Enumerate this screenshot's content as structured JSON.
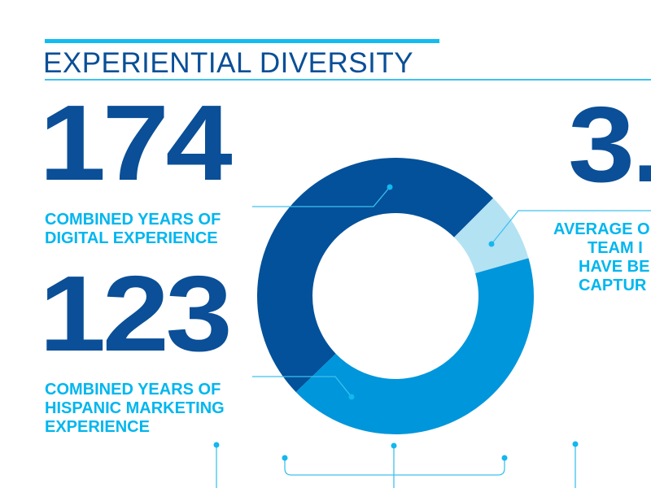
{
  "header": {
    "title": "EXPERIENTIAL DIVERSITY"
  },
  "stats": [
    {
      "value": "174",
      "label_lines": [
        "COMBINED YEARS OF",
        "DIGITAL EXPERIENCE"
      ]
    },
    {
      "value": "123",
      "label_lines": [
        "COMBINED YEARS OF",
        "HISPANIC MARKETING",
        "EXPERIENCE"
      ]
    },
    {
      "value": "3.",
      "label_lines": [
        "AVERAGE O",
        "TEAM I",
        "HAVE BE",
        "CAPTUR"
      ]
    }
  ],
  "colors": {
    "dark_blue": "#02519a",
    "medium_blue": "#0096db",
    "light_blue": "#b3e2f3",
    "accent_cyan": "#10bdf0"
  },
  "chart_data": {
    "type": "pie",
    "variant": "donut",
    "segments": [
      {
        "color": "#02519a",
        "share_percent": 49.7
      },
      {
        "color": "#b3e2f3",
        "share_percent": 8.1
      },
      {
        "color": "#0096db",
        "share_percent": 42.2
      }
    ],
    "start_angle_deg": 226
  }
}
